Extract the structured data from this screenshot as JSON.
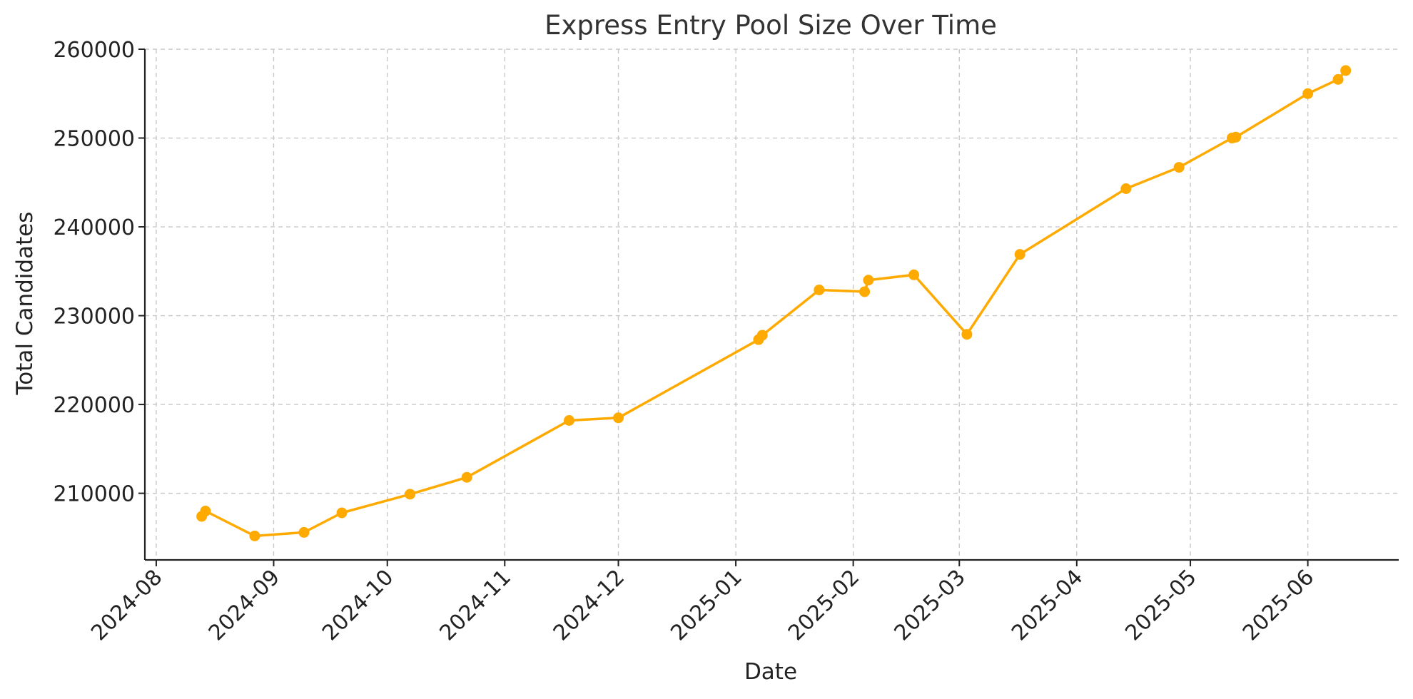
{
  "chart_data": {
    "type": "line",
    "title": "Express Entry Pool Size Over Time",
    "xlabel": "Date",
    "ylabel": "Total Candidates",
    "x_ticks": [
      "2024-08",
      "2024-09",
      "2024-10",
      "2024-11",
      "2024-12",
      "2025-01",
      "2025-02",
      "2025-03",
      "2025-04",
      "2025-05",
      "2025-06"
    ],
    "x_range": [
      "2024-07-29",
      "2025-06-25"
    ],
    "y_ticks": [
      210000,
      220000,
      230000,
      240000,
      250000,
      260000
    ],
    "ylim": [
      202500,
      260000
    ],
    "grid": true,
    "series": [
      {
        "color": "#FFAA00",
        "marker": "circle",
        "points": [
          {
            "x": "2024-08-13",
            "y": 207400
          },
          {
            "x": "2024-08-14",
            "y": 208000
          },
          {
            "x": "2024-08-27",
            "y": 205200
          },
          {
            "x": "2024-09-09",
            "y": 205600
          },
          {
            "x": "2024-09-19",
            "y": 207800
          },
          {
            "x": "2024-10-07",
            "y": 209900
          },
          {
            "x": "2024-10-22",
            "y": 211800
          },
          {
            "x": "2024-11-18",
            "y": 218200
          },
          {
            "x": "2024-12-01",
            "y": 218500
          },
          {
            "x": "2025-01-07",
            "y": 227300
          },
          {
            "x": "2025-01-08",
            "y": 227800
          },
          {
            "x": "2025-01-23",
            "y": 232900
          },
          {
            "x": "2025-02-04",
            "y": 232700
          },
          {
            "x": "2025-02-05",
            "y": 234000
          },
          {
            "x": "2025-02-17",
            "y": 234600
          },
          {
            "x": "2025-03-03",
            "y": 227900
          },
          {
            "x": "2025-03-17",
            "y": 236900
          },
          {
            "x": "2025-04-14",
            "y": 244300
          },
          {
            "x": "2025-04-28",
            "y": 246700
          },
          {
            "x": "2025-05-12",
            "y": 250000
          },
          {
            "x": "2025-05-13",
            "y": 250100
          },
          {
            "x": "2025-06-01",
            "y": 255000
          },
          {
            "x": "2025-06-09",
            "y": 256600
          },
          {
            "x": "2025-06-11",
            "y": 257600
          }
        ]
      }
    ]
  }
}
